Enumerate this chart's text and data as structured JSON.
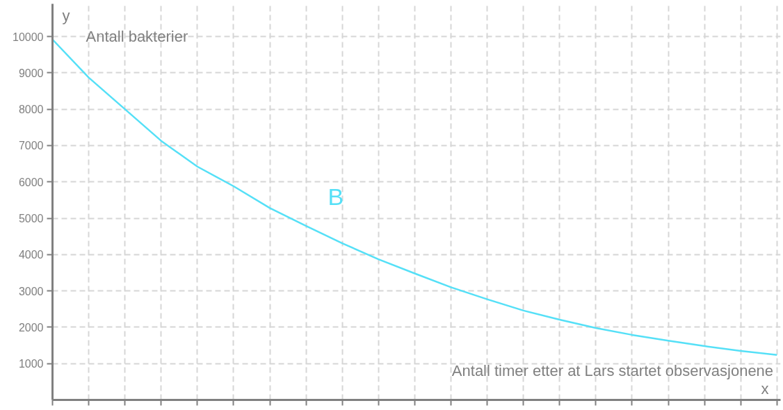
{
  "chart_data": {
    "type": "line",
    "xlabel": "x",
    "ylabel": "y",
    "annotations": [
      "Antall bakterier",
      "Antall timer etter at Lars startet observasjonene"
    ],
    "categories": [
      null,
      null,
      null,
      null,
      null,
      null,
      null,
      null,
      null,
      null,
      null,
      null,
      null,
      null,
      null,
      null,
      null,
      null,
      null,
      null,
      null
    ],
    "series": [
      {
        "name": "B",
        "color": "#55e0f7",
        "values": [
          9920,
          8870,
          8000,
          7130,
          6420,
          5880,
          5280,
          4790,
          4310,
          3870,
          3480,
          3100,
          2770,
          2460,
          2210,
          1980,
          1790,
          1630,
          1480,
          1350,
          1240
        ]
      }
    ],
    "ylim": [
      0,
      10900
    ],
    "yticks": [
      1000,
      2000,
      3000,
      4000,
      5000,
      6000,
      7000,
      8000,
      9000,
      10000
    ],
    "grid": true,
    "tick_labels": "y",
    "marker": "none",
    "line_style": "solid"
  }
}
